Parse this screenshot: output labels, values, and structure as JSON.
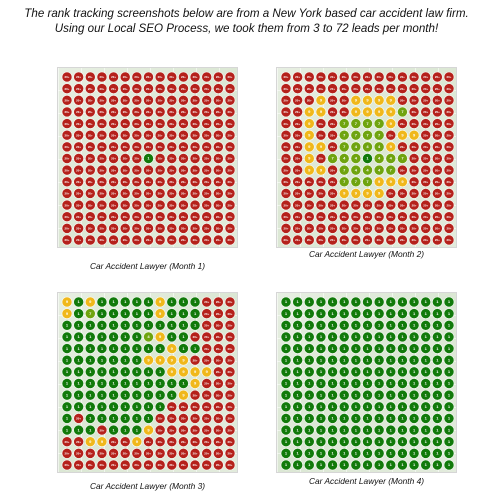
{
  "headline": "The rank tracking screenshots below are from a New York based car accident law firm. Using our Local SEO Process, we took them from 3 to 72 leads per month!",
  "colors": {
    "rank_1_3": "#117a0a",
    "rank_4_7": "#6fa40f",
    "rank_8_10": "#f0b81b",
    "rank_11_15": "#e9751c",
    "rank_16_20": "#d32f1f",
    "rank_20_plus": "#b5211b"
  },
  "panels": [
    {
      "caption": "Car Accident Lawyer (Month 1)",
      "grid": [
        "XXXXXXXXXXXXXXX",
        "XXXXXXXXXXXXXXX",
        "XXXXXXXXXXXXXXX",
        "XXXXXXXXXXXXXXX",
        "XXXXXXXXXXXXXXX",
        "XXXXXXXXXXXXXXX",
        "XXXXXXXXXXXXXXX",
        "XXXXXXX1XXXXXXX",
        "XXXXXXXXXXXXXXX",
        "XXXXXXXXXXXXXXX",
        "XXXXXXXXXXXXXXX",
        "XXXXXXXXXXXXXXX",
        "XXXXXXXXXXXXXXX",
        "XXXXXXXXXXXXXXX",
        "XXXXXXXXXXXXXXX"
      ]
    },
    {
      "caption": "Car Accident Lawyer (Month 2)",
      "grid": [
        "XXXXXXXXXXXXXXX",
        "XXXXXXXXXXXXXXX",
        "XXX9XX9999XXXXX",
        "XX99XX99997XXXX",
        "XX9XX77779XXXXX",
        "XX9XX7777X99XXX",
        "XX99X74449XXXXX",
        "XX9X7441447XXXX",
        "XX99X74447XXXXX",
        "XXXXX777999XXXX",
        "XXXXX9999XXXXXX",
        "XXXXXXXXXXXXXXX",
        "XXXXXXXXXXXXXXX",
        "XXXXXXXXXXXXXXX",
        "XXXXXXXXXXXXXXX"
      ]
    },
    {
      "caption": "Car Accident Lawyer (Month 3)",
      "grid": [
        "919111119111XXX",
        "917111119111XXX",
        "111111111111XXX",
        "11111114911XXXX",
        "111111111911XXX",
        "11111119999XXXX",
        "1111111119999XX",
        "111111111119XXX",
        "11111111119XXXX",
        "111111111XXXXXX",
        "1X111111XXXXXXX",
        "111X1119XXXXXXX",
        "XX99XX9XXXXXXXX",
        "XXXXXXXXXXXXXXX",
        "XXXXXXXXXXXXXXX"
      ]
    },
    {
      "caption": "Car Accident Lawyer (Month 4)",
      "grid": [
        "111111111111111",
        "111111111111111",
        "111111111111111",
        "111111111111111",
        "111111111111111",
        "111111111111111",
        "111111111111111",
        "111111111111111",
        "111111111111111",
        "111111111111111",
        "111111111111111",
        "111111111111111",
        "111111111111111",
        "111111111111111",
        "111111111111111"
      ]
    }
  ]
}
